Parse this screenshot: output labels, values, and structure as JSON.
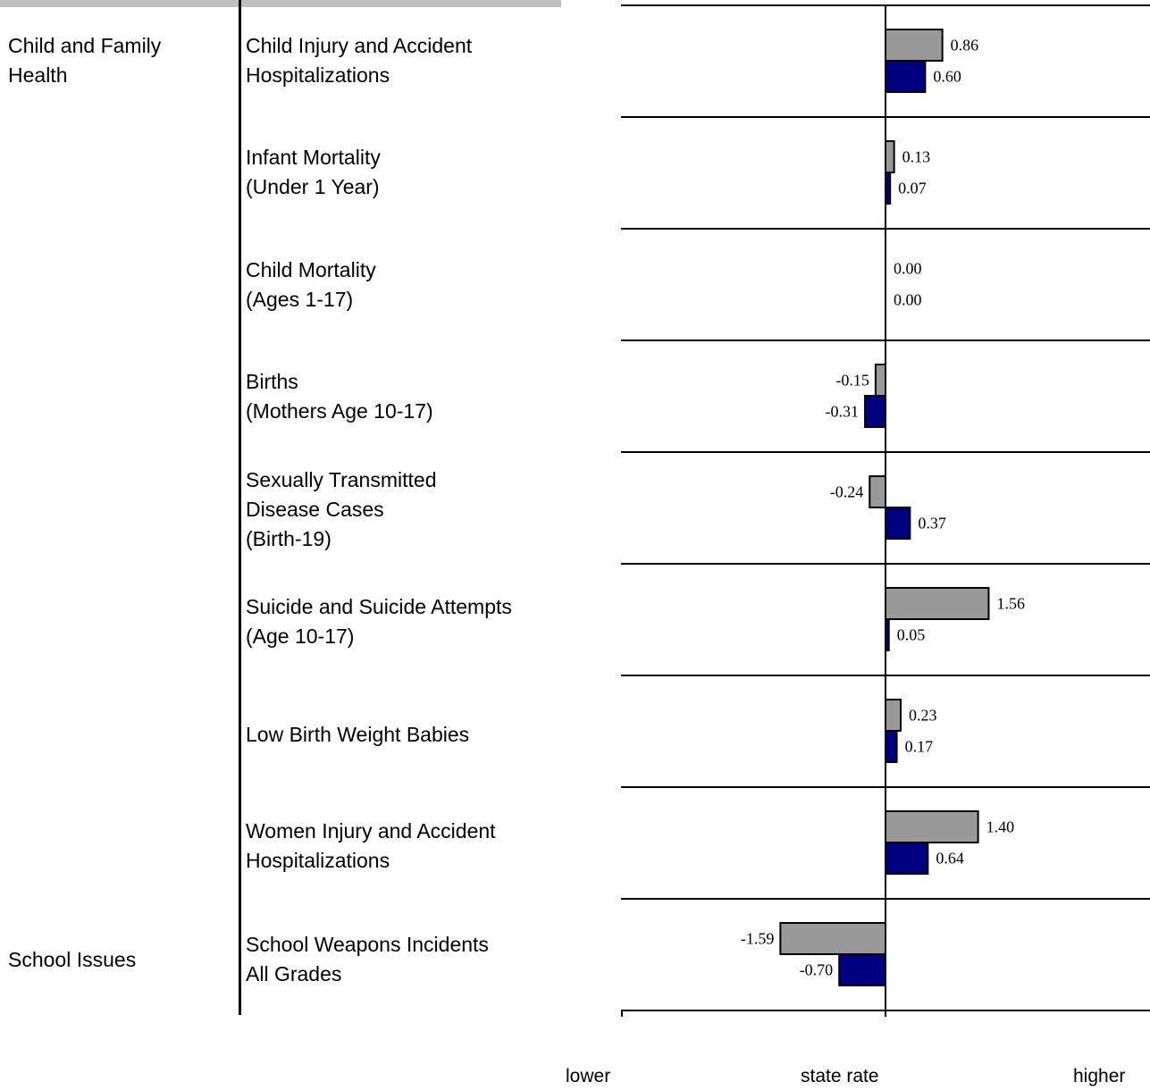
{
  "categories": [
    {
      "label": "Child and Family\nHealth"
    },
    {
      "label": "School Issues"
    }
  ],
  "rows": [
    {
      "label": "Child Injury and Accident\nHospitalizations"
    },
    {
      "label": "Infant Mortality\n(Under 1 Year)"
    },
    {
      "label": "Child Mortality\n(Ages 1-17)"
    },
    {
      "label": "Births\n(Mothers Age 10-17)"
    },
    {
      "label": "Sexually Transmitted\nDisease Cases\n(Birth-19)"
    },
    {
      "label": "Suicide and Suicide Attempts\n(Age 10-17)"
    },
    {
      "label": "Low Birth Weight Babies"
    },
    {
      "label": "Women Injury and Accident\nHospitalizations"
    },
    {
      "label": "School Weapons Incidents\nAll Grades"
    }
  ],
  "axis_captions": {
    "left": "lower",
    "center": "state rate",
    "right": "higher"
  },
  "colors": {
    "series_1": "#999999",
    "series_2": "#000080",
    "axis": "#000000",
    "top_rule": "#c0c0c0"
  },
  "chart_data": {
    "type": "bar",
    "orientation": "horizontal",
    "categories": [
      "Child Injury and Accident Hospitalizations",
      "Infant Mortality (Under 1 Year)",
      "Child Mortality (Ages 1-17)",
      "Births (Mothers Age 10-17)",
      "Sexually Transmitted Disease Cases (Birth-19)",
      "Suicide and Suicide Attempts (Age 10-17)",
      "Low Birth Weight Babies",
      "Women Injury and Accident Hospitalizations",
      "School Weapons Incidents All Grades"
    ],
    "series": [
      {
        "color": "#999999",
        "values": [
          0.86,
          0.13,
          0.0,
          -0.15,
          -0.24,
          1.56,
          0.23,
          1.4,
          -1.59
        ],
        "labels": [
          "0.86",
          "0.13",
          "0.00",
          "-0.15",
          "-0.24",
          "1.56",
          "0.23",
          "1.40",
          "-1.59"
        ]
      },
      {
        "color": "#000080",
        "values": [
          0.6,
          0.07,
          0.0,
          -0.31,
          0.37,
          0.05,
          0.17,
          0.64,
          -0.7
        ],
        "labels": [
          "0.60",
          "0.07",
          "0.00",
          "-0.31",
          "0.37",
          "0.05",
          "0.17",
          "0.64",
          "-0.70"
        ]
      }
    ],
    "xlim": [
      -4,
      4
    ],
    "grid": false,
    "legend": "none"
  }
}
